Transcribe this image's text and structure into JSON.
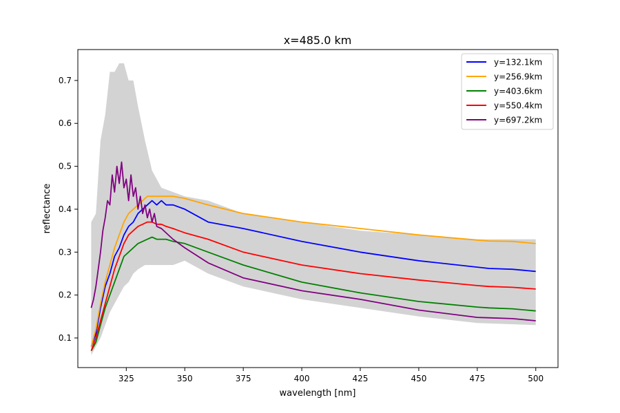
{
  "chart_data": {
    "type": "line",
    "title": "x=485.0 km",
    "xlabel": "wavelength [nm]",
    "ylabel": "reflectance",
    "xlim": [
      304.3,
      509.5
    ],
    "ylim": [
      0.031,
      0.772
    ],
    "xticks": [
      325,
      350,
      375,
      400,
      425,
      450,
      475,
      500
    ],
    "xtick_labels": [
      "325",
      "350",
      "375",
      "400",
      "425",
      "450",
      "475",
      "500"
    ],
    "yticks": [
      0.1,
      0.2,
      0.3,
      0.4,
      0.5,
      0.6,
      0.7
    ],
    "ytick_labels": [
      "0.1",
      "0.2",
      "0.3",
      "0.4",
      "0.5",
      "0.6",
      "0.7"
    ],
    "grid": false,
    "legend_position": "top-right",
    "envelope": {
      "color": "#d3d3d3",
      "x": [
        310,
        312,
        314,
        316,
        318,
        320,
        322,
        324,
        326,
        328,
        330,
        333,
        336,
        340,
        345,
        350,
        360,
        375,
        400,
        425,
        450,
        475,
        500
      ],
      "lower": [
        0.06,
        0.08,
        0.1,
        0.13,
        0.16,
        0.18,
        0.2,
        0.22,
        0.23,
        0.25,
        0.26,
        0.27,
        0.27,
        0.27,
        0.27,
        0.28,
        0.25,
        0.22,
        0.19,
        0.17,
        0.15,
        0.135,
        0.13
      ],
      "upper": [
        0.37,
        0.39,
        0.56,
        0.62,
        0.72,
        0.72,
        0.74,
        0.74,
        0.7,
        0.7,
        0.64,
        0.56,
        0.49,
        0.45,
        0.44,
        0.43,
        0.42,
        0.39,
        0.37,
        0.35,
        0.34,
        0.33,
        0.33
      ]
    },
    "series": [
      {
        "name": "y=132.1km",
        "color": "#0000ff",
        "x": [
          310,
          312,
          314,
          316,
          318,
          320,
          322,
          324,
          326,
          328,
          330,
          332,
          334,
          336,
          338,
          340,
          342,
          345,
          350,
          360,
          375,
          400,
          425,
          450,
          475,
          480,
          490,
          500
        ],
        "y": [
          0.08,
          0.11,
          0.17,
          0.22,
          0.25,
          0.29,
          0.31,
          0.34,
          0.36,
          0.37,
          0.39,
          0.4,
          0.41,
          0.42,
          0.41,
          0.42,
          0.41,
          0.41,
          0.4,
          0.37,
          0.355,
          0.325,
          0.3,
          0.28,
          0.265,
          0.262,
          0.26,
          0.255
        ]
      },
      {
        "name": "y=256.9km",
        "color": "#ffa500",
        "x": [
          310,
          312,
          314,
          316,
          318,
          320,
          322,
          324,
          326,
          328,
          330,
          332,
          334,
          336,
          338,
          340,
          342,
          345,
          350,
          360,
          375,
          400,
          425,
          450,
          475,
          480,
          490,
          500
        ],
        "y": [
          0.08,
          0.12,
          0.18,
          0.23,
          0.27,
          0.31,
          0.34,
          0.37,
          0.39,
          0.4,
          0.41,
          0.42,
          0.43,
          0.43,
          0.43,
          0.43,
          0.43,
          0.43,
          0.425,
          0.41,
          0.39,
          0.37,
          0.355,
          0.34,
          0.328,
          0.326,
          0.325,
          0.32
        ]
      },
      {
        "name": "y=403.6km",
        "color": "#008000",
        "x": [
          310,
          312,
          314,
          316,
          318,
          320,
          322,
          324,
          326,
          328,
          330,
          332,
          334,
          336,
          338,
          340,
          342,
          345,
          350,
          360,
          375,
          400,
          425,
          450,
          475,
          480,
          490,
          500
        ],
        "y": [
          0.07,
          0.09,
          0.13,
          0.17,
          0.2,
          0.23,
          0.26,
          0.29,
          0.3,
          0.31,
          0.32,
          0.325,
          0.33,
          0.335,
          0.33,
          0.33,
          0.33,
          0.325,
          0.32,
          0.3,
          0.27,
          0.23,
          0.205,
          0.185,
          0.172,
          0.17,
          0.168,
          0.163
        ]
      },
      {
        "name": "y=550.4km",
        "color": "#ff0000",
        "x": [
          310,
          312,
          314,
          316,
          318,
          320,
          322,
          324,
          326,
          328,
          330,
          332,
          334,
          336,
          338,
          340,
          342,
          345,
          350,
          360,
          375,
          400,
          425,
          450,
          475,
          480,
          490,
          500
        ],
        "y": [
          0.07,
          0.1,
          0.14,
          0.18,
          0.22,
          0.26,
          0.29,
          0.32,
          0.34,
          0.35,
          0.36,
          0.365,
          0.37,
          0.37,
          0.365,
          0.365,
          0.36,
          0.355,
          0.345,
          0.33,
          0.3,
          0.27,
          0.25,
          0.235,
          0.222,
          0.22,
          0.218,
          0.214
        ]
      },
      {
        "name": "y=697.2km",
        "color": "#800080",
        "x": [
          310,
          311,
          312,
          313,
          314,
          315,
          316,
          317,
          318,
          319,
          320,
          321,
          322,
          323,
          324,
          325,
          326,
          327,
          328,
          329,
          330,
          331,
          332,
          333,
          334,
          335,
          336,
          337,
          338,
          340,
          345,
          350,
          360,
          375,
          400,
          425,
          450,
          475,
          480,
          490,
          500
        ],
        "y": [
          0.17,
          0.19,
          0.22,
          0.26,
          0.3,
          0.35,
          0.38,
          0.42,
          0.41,
          0.48,
          0.44,
          0.5,
          0.46,
          0.51,
          0.45,
          0.47,
          0.42,
          0.48,
          0.43,
          0.45,
          0.4,
          0.43,
          0.39,
          0.41,
          0.38,
          0.4,
          0.37,
          0.39,
          0.36,
          0.355,
          0.33,
          0.31,
          0.275,
          0.24,
          0.21,
          0.19,
          0.165,
          0.148,
          0.147,
          0.145,
          0.14
        ]
      }
    ]
  }
}
